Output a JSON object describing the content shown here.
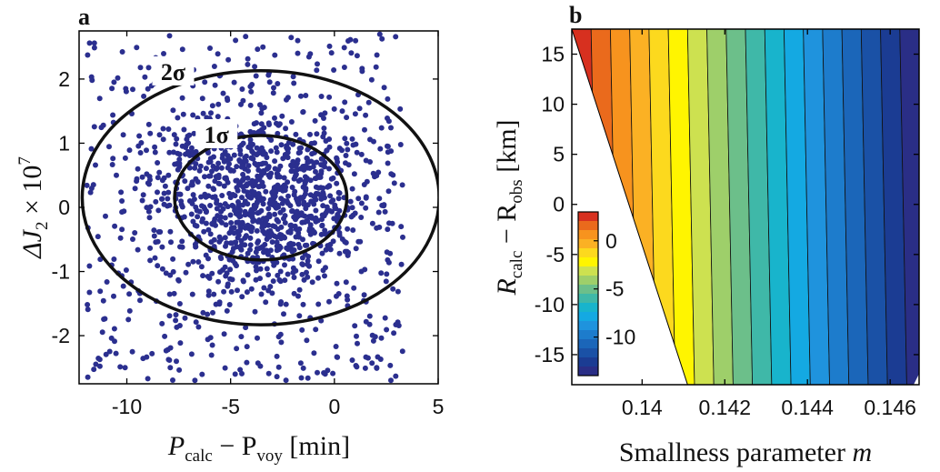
{
  "chart_data": [
    {
      "type": "scatter",
      "panel_label": "a",
      "xlabel_parts": {
        "main": "P",
        "sub1": "calc",
        "mid": " − P",
        "sub2": "voy",
        "unit": " [min]"
      },
      "ylabel_parts": {
        "main": "ΔJ",
        "sub": "2",
        "mid": " × 10",
        "sup": "7"
      },
      "xlim": [
        -12.3,
        5
      ],
      "ylim": [
        -2.75,
        2.75
      ],
      "xticks": [
        -10,
        -5,
        0,
        5
      ],
      "yticks": [
        -2,
        -1,
        0,
        1,
        2
      ],
      "point_color": "#2b2f8f",
      "point_count": 1400,
      "distribution": {
        "center_x": -3.5,
        "center_y": 0.15,
        "sigma_x": 4.2,
        "sigma_y": 0.95,
        "x_range": [
          -12,
          3.3
        ],
        "y_range": [
          -2.7,
          2.7
        ]
      },
      "ellipses": [
        {
          "label": "1σ",
          "cx": -3.55,
          "cy": 0.15,
          "rx": 4.15,
          "ry": 0.97
        },
        {
          "label": "2σ",
          "cx": -3.55,
          "cy": 0.15,
          "rx": 8.6,
          "ry": 1.98
        }
      ]
    },
    {
      "type": "heatmap",
      "subtype": "filled-contour",
      "panel_label": "b",
      "xlabel": "Smallness parameter ",
      "xlabel_var": "m",
      "ylabel_parts": {
        "main": "R",
        "sub1": "calc",
        "mid": " − R",
        "sub2": "obs",
        "unit": " [km]"
      },
      "xlim": [
        0.1383,
        0.1467
      ],
      "ylim": [
        -18,
        17.5
      ],
      "xticks": [
        0.14,
        0.142,
        0.144,
        0.146
      ],
      "xtick_labels": [
        "0.14",
        "0.142",
        "0.144",
        "0.146"
      ],
      "yticks": [
        -15,
        -10,
        -5,
        0,
        5,
        10,
        15
      ],
      "valid_region_boundary": [
        [
          0.1383,
          17.5
        ],
        [
          0.1411,
          -18
        ]
      ],
      "bands": {
        "value_unit": "km",
        "slope_per_m": -0.003,
        "levels_start": 3,
        "levels_step": -1,
        "levels_count": 18,
        "colors": [
          "#d7301f",
          "#ea6a1c",
          "#f7931e",
          "#fbb124",
          "#fcd91e",
          "#fff500",
          "#cde150",
          "#9ecf6a",
          "#6cbf8a",
          "#3fb8a8",
          "#18b4cc",
          "#14a9e2",
          "#1f93dd",
          "#1d7ccc",
          "#1b66b9",
          "#1a51a6",
          "#1b3c93",
          "#2a2e86"
        ]
      },
      "colorbar": {
        "min": -14,
        "max": 3,
        "ticks": [
          0,
          -5,
          -10
        ],
        "tick_labels": [
          "0",
          "-5",
          "-10"
        ]
      }
    }
  ]
}
